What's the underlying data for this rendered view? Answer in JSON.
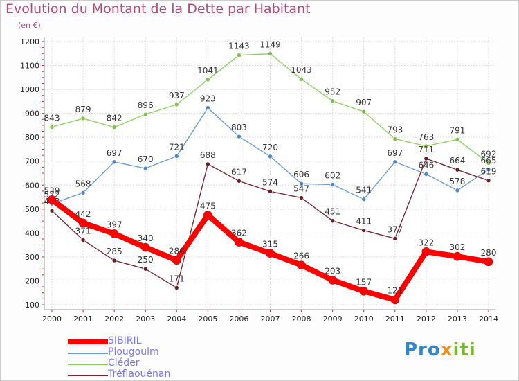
{
  "chart_data": {
    "type": "line",
    "title": "Evolution du Montant de la Dette par Habitant",
    "subtitle": "(en €)",
    "x": [
      "2000",
      "2001",
      "2002",
      "2003",
      "2004",
      "2005",
      "2006",
      "2007",
      "2008",
      "2009",
      "2010",
      "2011",
      "2012",
      "2013",
      "2014"
    ],
    "yticks": [
      "100",
      "200",
      "300",
      "400",
      "500",
      "600",
      "700",
      "800",
      "900",
      "1000",
      "1100",
      "1200"
    ],
    "ylim": [
      100,
      1200
    ],
    "grid": true,
    "legend_position": "bottom-left",
    "series": [
      {
        "name": "Cléder",
        "color": "#8ed264",
        "dot": "#7cc044",
        "width": 1.4,
        "values": [
          843,
          879,
          842,
          896,
          937,
          1041,
          1143,
          1149,
          1043,
          952,
          907,
          793,
          763,
          791,
          692
        ]
      },
      {
        "name": "Plougoulm",
        "color": "#6b9fd0",
        "dot": "#4e86c2",
        "width": 1.4,
        "values": [
          522,
          568,
          697,
          670,
          721,
          923,
          803,
          720,
          606,
          602,
          541,
          697,
          646,
          578,
          665
        ]
      },
      {
        "name": "Tréflaouénan",
        "color": "#7a2a33",
        "dot": "#6a1f28",
        "width": 1.4,
        "values": [
          493,
          371,
          285,
          250,
          171,
          688,
          617,
          574,
          547,
          451,
          411,
          377,
          711,
          664,
          619
        ]
      },
      {
        "name": "SIBIRIL",
        "color": "#ff0000",
        "dot": "#ff0000",
        "width": 8,
        "values": [
          539,
          442,
          397,
          340,
          286,
          475,
          362,
          315,
          266,
          203,
          157,
          121,
          322,
          302,
          280
        ]
      }
    ]
  },
  "legend": [
    {
      "label": "SIBIRIL",
      "color": "#ff0000",
      "width": 7
    },
    {
      "label": "Plougoulm",
      "color": "#6b9fd0",
      "width": 2
    },
    {
      "label": "Cléder",
      "color": "#8ed264",
      "width": 2
    },
    {
      "label": "Tréflaouénan",
      "color": "#7a2a33",
      "width": 2
    }
  ],
  "logo": {
    "part1": "Pro",
    "part2": "x",
    "part3": "iti"
  }
}
